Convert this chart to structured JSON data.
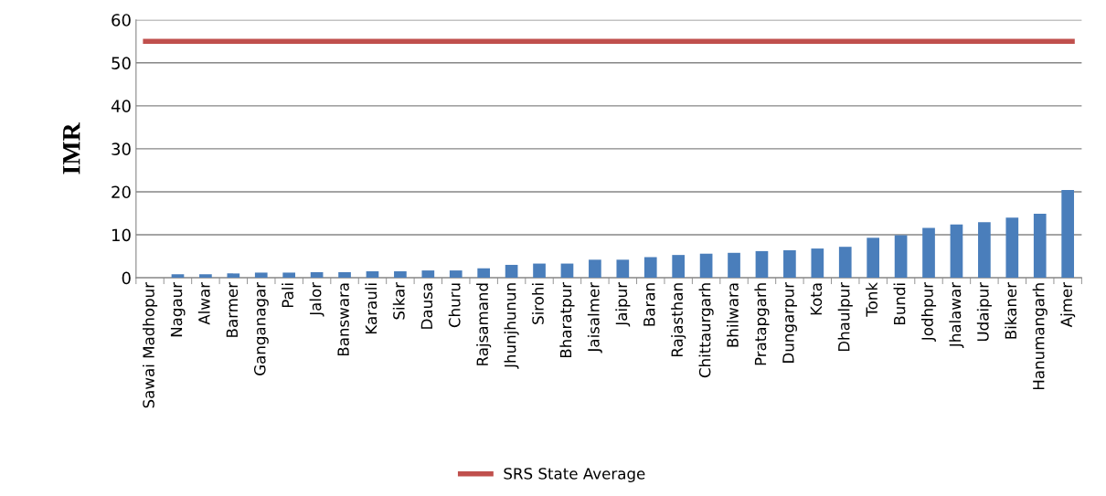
{
  "chart_data": {
    "type": "bar",
    "ylabel": "IMR",
    "categories": [
      "Sawai Madhopur",
      "Nagaur",
      "Alwar",
      "Barmer",
      "Ganganagar",
      "Pali",
      "Jalor",
      "Banswara",
      "Karauli",
      "Sikar",
      "Dausa",
      "Churu",
      "Rajsamand",
      "Jhunjhunun",
      "Sirohi",
      "Bharatpur",
      "Jaisalmer",
      "Jaipur",
      "Baran",
      "Rajasthan",
      "Chittaurgarh",
      "Bhilwara",
      "Pratapgarh",
      "Dungarpur",
      "Kota",
      "Dhaulpur",
      "Tonk",
      "Bundi",
      "Jodhpur",
      "Jhalawar",
      "Udaipur",
      "Bikaner",
      "Hanumangarh",
      "Ajmer"
    ],
    "values": [
      0,
      0.8,
      0.8,
      1.0,
      1.2,
      1.2,
      1.3,
      1.3,
      1.5,
      1.5,
      1.7,
      1.7,
      2.2,
      3.0,
      3.3,
      3.3,
      4.2,
      4.2,
      4.8,
      5.3,
      5.6,
      5.8,
      6.2,
      6.4,
      6.8,
      7.2,
      9.3,
      9.9,
      11.6,
      12.4,
      12.9,
      14.0,
      14.9,
      20.4
    ],
    "color": "#4a7ebb",
    "ylim": [
      0,
      60
    ],
    "yticks": [
      0,
      10,
      20,
      30,
      40,
      50,
      60
    ],
    "grid": "y",
    "ref_lines": [
      {
        "axis": "y",
        "value": 55,
        "label": "SRS State Average",
        "color": "#c0504d"
      }
    ],
    "legend": "bottom"
  }
}
